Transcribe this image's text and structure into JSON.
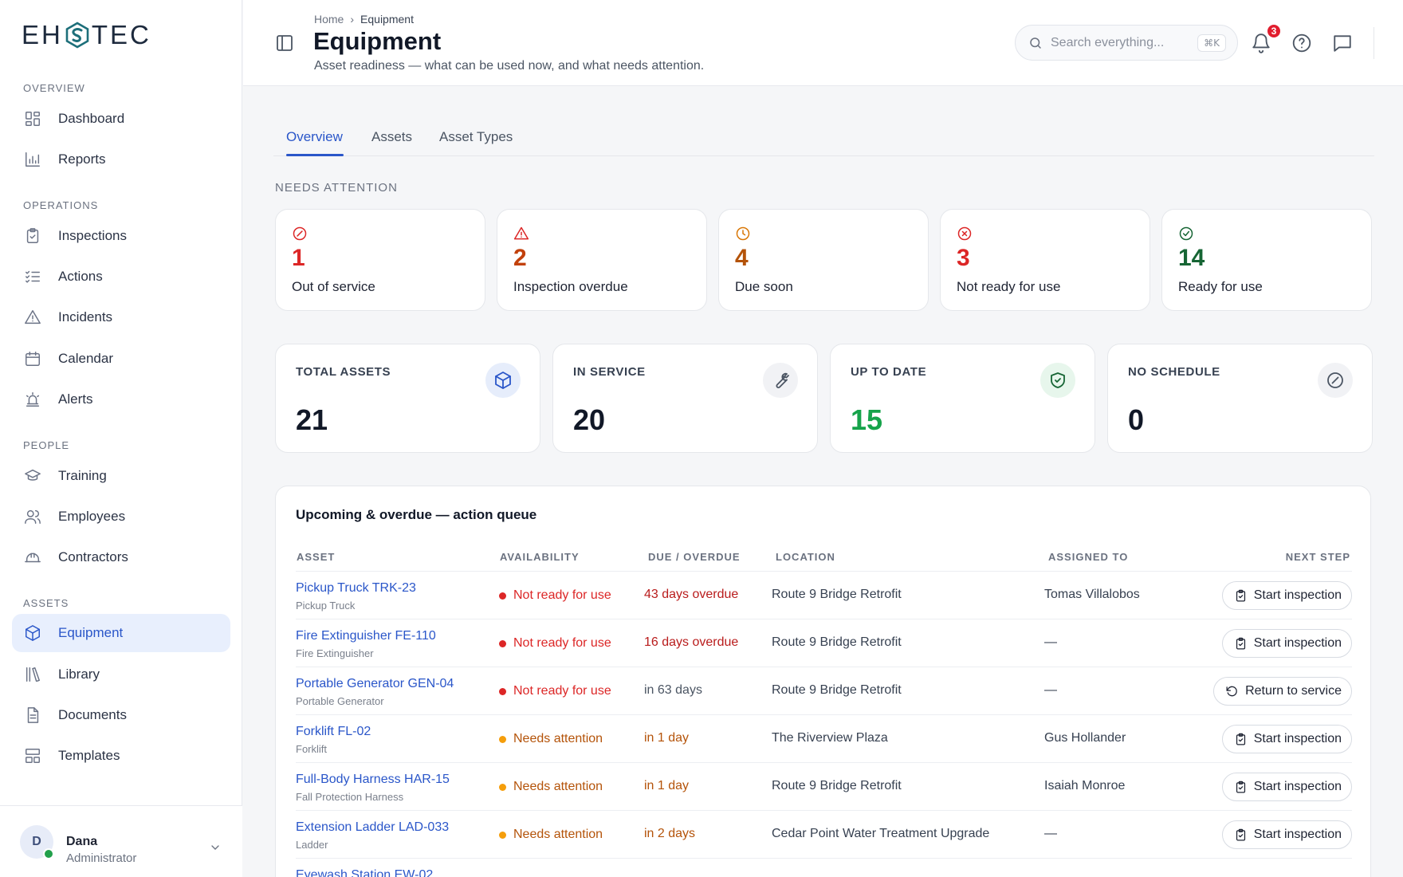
{
  "brand": {
    "logo_left": "EH",
    "logo_right": "TEC"
  },
  "sidebar": {
    "sections": [
      {
        "label": "OVERVIEW",
        "items": [
          {
            "label": "Dashboard",
            "icon": "dashboard-icon"
          },
          {
            "label": "Reports",
            "icon": "bar-chart-icon"
          }
        ]
      },
      {
        "label": "OPERATIONS",
        "items": [
          {
            "label": "Inspections",
            "icon": "clipboard-check-icon"
          },
          {
            "label": "Actions",
            "icon": "list-check-icon"
          },
          {
            "label": "Incidents",
            "icon": "warning-triangle-icon"
          },
          {
            "label": "Calendar",
            "icon": "calendar-icon"
          },
          {
            "label": "Alerts",
            "icon": "siren-icon"
          }
        ]
      },
      {
        "label": "PEOPLE",
        "items": [
          {
            "label": "Training",
            "icon": "graduation-cap-icon"
          },
          {
            "label": "Employees",
            "icon": "users-icon"
          },
          {
            "label": "Contractors",
            "icon": "hard-hat-icon"
          }
        ]
      },
      {
        "label": "ASSETS",
        "items": [
          {
            "label": "Equipment",
            "icon": "cube-icon",
            "active": true
          },
          {
            "label": "Library",
            "icon": "library-icon"
          },
          {
            "label": "Documents",
            "icon": "document-icon"
          },
          {
            "label": "Templates",
            "icon": "template-icon"
          }
        ]
      }
    ],
    "user": {
      "initial": "D",
      "name": "Dana",
      "role": "Administrator",
      "status_color": "#22a04b"
    }
  },
  "header": {
    "breadcrumb": {
      "home": "Home",
      "separator": "›",
      "current": "Equipment"
    },
    "title": "Equipment",
    "subtitle": "Asset readiness — what can be used now, and what needs attention.",
    "search": {
      "placeholder": "Search everything...",
      "shortcut": "⌘K"
    },
    "notifications_count": "3"
  },
  "tabs": [
    {
      "label": "Overview",
      "active": true
    },
    {
      "label": "Assets"
    },
    {
      "label": "Asset Types"
    }
  ],
  "needs_attention": {
    "label": "NEEDS ATTENTION",
    "cards": [
      {
        "value": "1",
        "label": "Out of service",
        "color": "#dc2626",
        "icon": "ban-icon"
      },
      {
        "value": "2",
        "label": "Inspection overdue",
        "color": "#c2410c",
        "icon": "alert-triangle-icon"
      },
      {
        "value": "4",
        "label": "Due soon",
        "color": "#b45309",
        "icon": "clock-icon"
      },
      {
        "value": "3",
        "label": "Not ready for use",
        "color": "#dc2626",
        "icon": "x-circle-icon"
      },
      {
        "value": "14",
        "label": "Ready for use",
        "color": "#166534",
        "icon": "check-circle-icon"
      }
    ]
  },
  "stats": [
    {
      "label": "TOTAL ASSETS",
      "value": "21",
      "icon": "cube-icon",
      "value_color": "#111827"
    },
    {
      "label": "IN SERVICE",
      "value": "20",
      "icon": "wrench-icon",
      "value_color": "#111827"
    },
    {
      "label": "UP TO DATE",
      "value": "15",
      "icon": "shield-check-icon",
      "value_color": "#16a34a"
    },
    {
      "label": "NO SCHEDULE",
      "value": "0",
      "icon": "slash-circle-icon",
      "value_color": "#111827"
    }
  ],
  "queue": {
    "title": "Upcoming & overdue — action queue",
    "columns": {
      "asset": "ASSET",
      "availability": "AVAILABILITY",
      "due": "DUE / OVERDUE",
      "location": "LOCATION",
      "assigned": "ASSIGNED TO",
      "next": "NEXT STEP"
    },
    "rows": [
      {
        "asset": "Pickup Truck TRK-23",
        "type": "Pickup Truck",
        "availability": "Not ready for use",
        "due": "43 days overdue",
        "location": "Route 9 Bridge Retrofit",
        "assigned": "Tomas Villalobos",
        "action": "Start inspection"
      },
      {
        "asset": "Fire Extinguisher FE-110",
        "type": "Fire Extinguisher",
        "availability": "Not ready for use",
        "due": "16 days overdue",
        "location": "Route 9 Bridge Retrofit",
        "assigned": "—",
        "action": "Start inspection"
      },
      {
        "asset": "Portable Generator GEN-04",
        "type": "Portable Generator",
        "availability": "Not ready for use",
        "due": "in 63 days",
        "location": "Route 9 Bridge Retrofit",
        "assigned": "—",
        "action": "Return to service"
      },
      {
        "asset": "Forklift FL-02",
        "type": "Forklift",
        "availability": "Needs attention",
        "due": "in 1 day",
        "location": "The Riverview Plaza",
        "assigned": "Gus Hollander",
        "action": "Start inspection"
      },
      {
        "asset": "Full-Body Harness HAR-15",
        "type": "Fall Protection Harness",
        "availability": "Needs attention",
        "due": "in 1 day",
        "location": "Route 9 Bridge Retrofit",
        "assigned": "Isaiah Monroe",
        "action": "Start inspection"
      },
      {
        "asset": "Extension Ladder LAD-033",
        "type": "Ladder",
        "availability": "Needs attention",
        "due": "in 2 days",
        "location": "Cedar Point Water Treatment Upgrade",
        "assigned": "—",
        "action": "Start inspection"
      },
      {
        "asset": "Eyewash Station EW-02",
        "type": "",
        "availability": "",
        "due": "",
        "location": "",
        "assigned": "",
        "action": ""
      }
    ]
  },
  "colors": {
    "accent": "#2a56c9",
    "red": "#dc2626",
    "overdue": "#b91c1c",
    "amber": "#f59e0b",
    "amber_text": "#b45309",
    "neutral_due": "#4b5563"
  }
}
